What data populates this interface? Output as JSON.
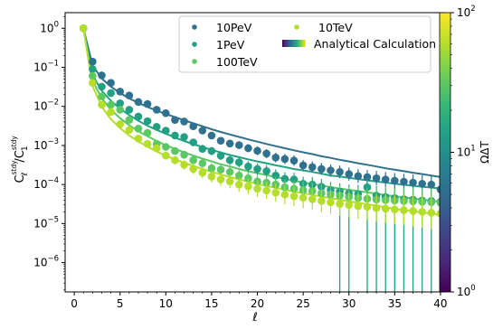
{
  "chart_data": {
    "type": "scatter",
    "xlabel": "ℓ",
    "ylabel_main": "C",
    "ylabel_sub": "ℓ",
    "ylabel_sup": "stdy",
    "ylabel_den": "/C",
    "ylabel_den_sub": "1",
    "ylabel_den_sup": "stdy",
    "xlim": [
      -1,
      40.5
    ],
    "ylim_log10": [
      -6.75,
      0.4
    ],
    "xticks": [
      0,
      5,
      10,
      15,
      20,
      25,
      30,
      35,
      40
    ],
    "yticks_exp": [
      0,
      -1,
      -2,
      -3,
      -4,
      -5,
      -6
    ],
    "ytick_base": "10",
    "yscale": "log",
    "grid": false,
    "legend_position": "top-right",
    "colorbar": {
      "label": "ΩΔT",
      "scale": "log",
      "ticks_exp": [
        0,
        1,
        2
      ],
      "tick_base": "10",
      "range": [
        1,
        100
      ],
      "colormap": "viridis"
    },
    "series": [
      {
        "name": "10PeV",
        "color": "#2f718e",
        "x": [
          1,
          2,
          3,
          4,
          5,
          6,
          7,
          8,
          9,
          10,
          11,
          12,
          13,
          14,
          15,
          16,
          17,
          18,
          19,
          20,
          21,
          22,
          23,
          24,
          25,
          26,
          27,
          28,
          29,
          30,
          31,
          32,
          33,
          34,
          35,
          36,
          37,
          38,
          39,
          40
        ],
        "y": [
          1.0,
          0.14,
          0.062,
          0.04,
          0.024,
          0.019,
          0.013,
          0.0115,
          0.0082,
          0.0067,
          0.0045,
          0.0041,
          0.0031,
          0.0024,
          0.0018,
          0.00132,
          0.00112,
          0.00102,
          0.00085,
          0.00073,
          0.00062,
          0.00049,
          0.00045,
          0.00041,
          0.00031,
          0.00028,
          0.00025,
          0.00023,
          0.00021,
          0.000185,
          0.000165,
          0.000155,
          0.000145,
          0.000135,
          0.000125,
          0.000118,
          0.000112,
          0.000105,
          0.0001,
          7.5e-05
        ],
        "curve_y": [
          1.0,
          0.11,
          0.052,
          0.032,
          0.022,
          0.016,
          0.0123,
          0.0097,
          0.0078,
          0.0064,
          0.0053,
          0.0044,
          0.0037,
          0.0031,
          0.0026,
          0.00222,
          0.00191,
          0.00165,
          0.00143,
          0.00125,
          0.00109,
          0.00096,
          0.00085,
          0.00075,
          0.00067,
          0.0006,
          0.00053,
          0.00048,
          0.00043,
          0.00039,
          0.00035,
          0.00032,
          0.00029,
          0.00026,
          0.00024,
          0.00022,
          0.0002,
          0.000185,
          0.00017,
          0.000155
        ]
      },
      {
        "name": "1PeV",
        "color": "#23a083",
        "x": [
          1,
          2,
          3,
          4,
          5,
          6,
          7,
          8,
          9,
          10,
          11,
          12,
          13,
          14,
          15,
          16,
          17,
          18,
          19,
          20,
          21,
          22,
          23,
          24,
          25,
          26,
          27,
          28,
          29,
          30,
          31,
          32,
          33,
          34,
          35,
          36,
          37,
          38,
          39,
          40
        ],
        "y": [
          1.0,
          0.09,
          0.032,
          0.022,
          0.012,
          0.0082,
          0.0055,
          0.0042,
          0.003,
          0.0024,
          0.0018,
          0.00165,
          0.0012,
          0.00082,
          0.00072,
          0.00055,
          0.00042,
          0.00037,
          0.00029,
          0.00025,
          0.00022,
          0.00017,
          0.00014,
          0.000135,
          0.000105,
          0.0001,
          8.8e-05,
          7.2e-05,
          6.6e-05,
          6e-05,
          5.8e-05,
          8.5e-05,
          5.2e-05,
          4.8e-05,
          4.5e-05,
          4.2e-05,
          4.1e-05,
          3.9e-05,
          3.8e-05,
          3.6e-05
        ],
        "curve_y": [
          1.0,
          0.063,
          0.025,
          0.014,
          0.0088,
          0.006,
          0.0043,
          0.0032,
          0.0025,
          0.002,
          0.0016,
          0.0013,
          0.00108,
          0.00091,
          0.00077,
          0.00066,
          0.00057,
          0.0005,
          0.00044,
          0.00039,
          0.00035,
          0.00031,
          0.00028,
          0.00025,
          0.00023,
          0.00021,
          0.00019,
          0.00017,
          0.00016,
          0.000148,
          0.000138,
          0.000128,
          0.00012,
          0.000112,
          0.000105,
          9.85e-05,
          9.3e-05,
          8.8e-05,
          8.35e-05,
          7.9e-05
        ]
      },
      {
        "name": "100TeV",
        "color": "#5cc863",
        "x": [
          1,
          2,
          3,
          4,
          5,
          6,
          7,
          8,
          9,
          10,
          11,
          12,
          13,
          14,
          15,
          16,
          17,
          18,
          19,
          20,
          21,
          22,
          23,
          24,
          25,
          26,
          27,
          28,
          29,
          30,
          31,
          32,
          33,
          34,
          35,
          36,
          37,
          38,
          39,
          40
        ],
        "y": [
          1.0,
          0.06,
          0.018,
          0.011,
          0.0082,
          0.0045,
          0.0027,
          0.0021,
          0.0011,
          0.00092,
          0.00072,
          0.00058,
          0.00042,
          0.00035,
          0.00026,
          0.00024,
          0.00021,
          0.00017,
          0.000145,
          0.00012,
          0.000112,
          0.0001,
          8.5e-05,
          7.8e-05,
          7.2e-05,
          6.8e-05,
          6e-05,
          5.6e-05,
          5.2e-05,
          4.8e-05,
          4.5e-05,
          4.3e-05,
          4.1e-05,
          4e-05,
          3.9e-05,
          3.8e-05,
          3.7e-05,
          3.6e-05,
          3.5e-05,
          3.4e-05
        ],
        "curve_y": [
          1.0,
          0.045,
          0.016,
          0.0082,
          0.005,
          0.0033,
          0.0023,
          0.00172,
          0.0013,
          0.00102,
          0.00082,
          0.00067,
          0.00055,
          0.00046,
          0.00039,
          0.00033,
          0.00029,
          0.00025,
          0.00022,
          0.000195,
          0.000175,
          0.000155,
          0.00014,
          0.000125,
          0.000113,
          0.000103,
          9.4e-05,
          8.6e-05,
          7.9e-05,
          7.3e-05,
          6.8e-05,
          6.3e-05,
          5.8e-05,
          5.4e-05,
          5e-05,
          4.7e-05,
          4.4e-05,
          4.1e-05,
          3.8e-05,
          3.6e-05
        ]
      },
      {
        "name": "10TeV",
        "color": "#b5de2b",
        "x": [
          1,
          2,
          3,
          4,
          5,
          6,
          7,
          8,
          9,
          10,
          11,
          12,
          13,
          14,
          15,
          16,
          17,
          18,
          19,
          20,
          21,
          22,
          23,
          24,
          25,
          26,
          27,
          28,
          29,
          30,
          31,
          32,
          33,
          34,
          35,
          36,
          37,
          38,
          39,
          40
        ],
        "y": [
          1.0,
          0.04,
          0.011,
          0.0072,
          0.0035,
          0.0025,
          0.0015,
          0.0011,
          0.00085,
          0.00055,
          0.00042,
          0.00032,
          0.00025,
          0.0002,
          0.00016,
          0.000135,
          0.00012,
          0.0001,
          9e-05,
          7.8e-05,
          7e-05,
          6.2e-05,
          5.5e-05,
          5e-05,
          4.6e-05,
          4.2e-05,
          3.8e-05,
          3.5e-05,
          3.2e-05,
          3e-05,
          2.8e-05,
          2.7e-05,
          2.5e-05,
          2.4e-05,
          2.3e-05,
          2.2e-05,
          2.1e-05,
          2e-05,
          1.9e-05,
          1.8e-05
        ],
        "curve_y": [
          1.0,
          0.033,
          0.0098,
          0.0047,
          0.0028,
          0.0018,
          0.00127,
          0.00093,
          0.0007,
          0.00055,
          0.00044,
          0.00036,
          0.0003,
          0.00025,
          0.00021,
          0.00018,
          0.000155,
          0.000135,
          0.000118,
          0.000104,
          9.2e-05,
          8.2e-05,
          7.4e-05,
          6.6e-05,
          6e-05,
          5.4e-05,
          4.9e-05,
          4.5e-05,
          4.1e-05,
          3.7e-05,
          3.4e-05,
          3.1e-05,
          2.9e-05,
          2.6e-05,
          2.4e-05,
          2.2e-05,
          2.1e-05,
          1.9e-05,
          1.8e-05,
          1.65e-05
        ]
      }
    ],
    "analytical_label": "Analytical Calculation",
    "lower_error_to_bottom_x": [
      29,
      30,
      32,
      33,
      34,
      35,
      36,
      37,
      38,
      39,
      40
    ]
  }
}
